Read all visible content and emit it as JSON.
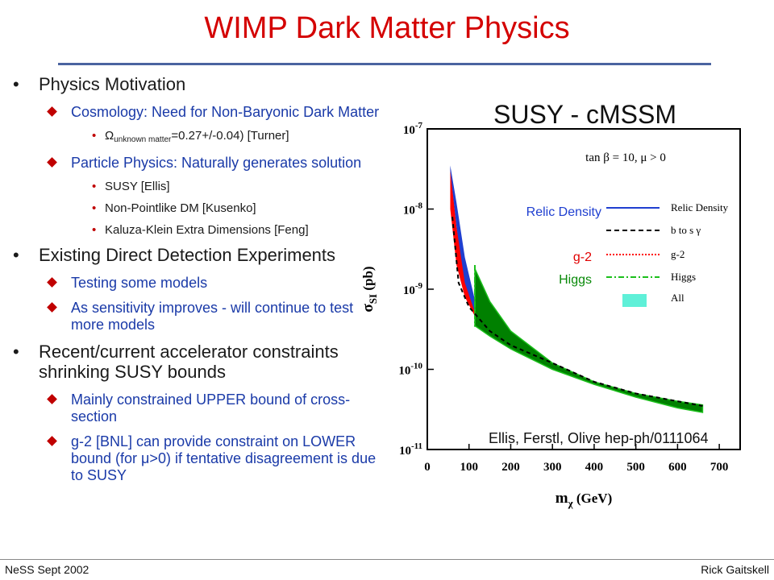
{
  "slide": {
    "title": "WIMP Dark Matter Physics",
    "footer_left": "NeSS Sept 2002",
    "footer_right": "Rick Gaitskell"
  },
  "bullets": {
    "b1": "Physics Motivation",
    "b1_s1": "Cosmology: Need for Non-Baryonic Dark Matter",
    "b1_s1_t1_pre": "Ω",
    "b1_s1_t1_sub": "unknown matter",
    "b1_s1_t1_post": "=0.27+/-0.04) [Turner]",
    "b1_s2": "Particle Physics: Naturally generates solution",
    "b1_s2_t1": "SUSY [Ellis]",
    "b1_s2_t2": "Non-Pointlike DM [Kusenko]",
    "b1_s2_t3": "Kaluza-Klein Extra Dimensions [Feng]",
    "b2": "Existing Direct Detection Experiments",
    "b2_s1": "Testing some models",
    "b2_s2": "As sensitivity improves - will continue to test more models",
    "b3": "Recent/current accelerator constraints shrinking SUSY bounds",
    "b3_s1": "Mainly constrained UPPER bound of cross-section",
    "b3_s2": "g-2 [BNL] can provide constraint on LOWER bound (for μ>0) if tentative disagreement is due to SUSY"
  },
  "chart_heading": "SUSY - cMSSM",
  "chart_data": {
    "type": "area",
    "xlabel_main": "m",
    "xlabel_sub": "χ",
    "xlabel_unit": "(GeV)",
    "ylabel_main": "σ",
    "ylabel_sub": "SI",
    "ylabel_unit": "(pb)",
    "xlim": [
      0,
      750
    ],
    "x_ticks": [
      "0",
      "100",
      "200",
      "300",
      "400",
      "500",
      "600",
      "700"
    ],
    "y_scale": "log",
    "ylim": [
      1e-11,
      1e-07
    ],
    "y_ticks": [
      {
        "base": "10",
        "exp": "-7"
      },
      {
        "base": "10",
        "exp": "-8"
      },
      {
        "base": "10",
        "exp": "-9"
      },
      {
        "base": "10",
        "exp": "-10"
      },
      {
        "base": "10",
        "exp": "-11"
      }
    ],
    "model_label": "tan β = 10,  μ > 0",
    "series": [
      {
        "name": "Relic Density",
        "color": "#1f3fd0",
        "style": "solid",
        "region": "narrow strip",
        "upper": [
          [
            55,
            3.5e-08
          ],
          [
            70,
            1.2e-08
          ],
          [
            90,
            2.5e-09
          ],
          [
            115,
            7e-10
          ]
        ],
        "lower": [
          [
            55,
            3e-08
          ],
          [
            70,
            6e-09
          ],
          [
            90,
            1.2e-09
          ],
          [
            115,
            5e-10
          ]
        ]
      },
      {
        "name": "b to s γ",
        "color": "#000000",
        "style": "dashed",
        "points": [
          [
            60,
            8e-09
          ],
          [
            75,
            1.2e-09
          ],
          [
            100,
            6e-10
          ],
          [
            150,
            3e-10
          ],
          [
            200,
            2e-10
          ],
          [
            300,
            1.2e-10
          ],
          [
            400,
            7e-11
          ],
          [
            500,
            5e-11
          ],
          [
            600,
            4e-11
          ],
          [
            660,
            3.5e-11
          ]
        ]
      },
      {
        "name": "g-2",
        "color": "#ff0000",
        "style": "dotted",
        "upper": [
          [
            55,
            3.2e-08
          ],
          [
            70,
            6e-09
          ],
          [
            90,
            1.5e-09
          ],
          [
            115,
            6e-10
          ]
        ],
        "lower": [
          [
            55,
            1e-08
          ],
          [
            70,
            2e-09
          ],
          [
            90,
            8e-10
          ],
          [
            115,
            4.5e-10
          ]
        ]
      },
      {
        "name": "Higgs",
        "color": "#1bbf1b",
        "style": "dash-dot",
        "x_boundary": 114
      },
      {
        "name": "All",
        "color": "#008000",
        "style": "filled",
        "upper": [
          [
            114,
            1.8e-09
          ],
          [
            150,
            7e-10
          ],
          [
            200,
            3e-10
          ],
          [
            300,
            1.2e-10
          ],
          [
            400,
            7e-11
          ],
          [
            500,
            5e-11
          ],
          [
            600,
            4e-11
          ],
          [
            660,
            3.6e-11
          ]
        ],
        "lower": [
          [
            114,
            3.5e-10
          ],
          [
            150,
            2.6e-10
          ],
          [
            200,
            1.8e-10
          ],
          [
            300,
            1e-10
          ],
          [
            400,
            6.5e-11
          ],
          [
            500,
            4.5e-11
          ],
          [
            600,
            3.3e-11
          ],
          [
            660,
            2.9e-11
          ]
        ]
      }
    ],
    "legend_entries": [
      "Relic Density",
      "b to s γ",
      "g-2",
      "Higgs",
      "All"
    ],
    "legend_all_color": "#5ff0d8",
    "legend_placement": "top-right",
    "overlay_labels": [
      "Relic Density",
      "g-2",
      "Higgs"
    ],
    "citation": "Ellis, Ferstl, Olive hep-ph/0111064"
  }
}
